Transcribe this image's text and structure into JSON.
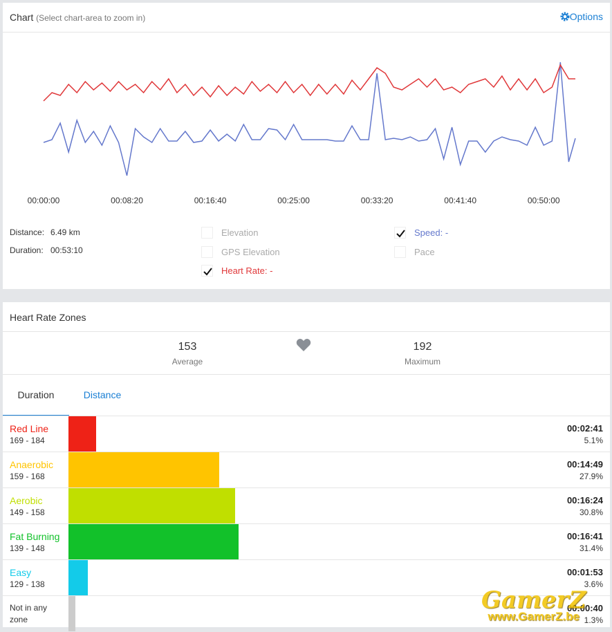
{
  "chart_data": {
    "type": "line",
    "title": "Chart",
    "subtitle": "(Select chart-area to zoom in)",
    "x": [
      0,
      50,
      100,
      150,
      200,
      250,
      300,
      350,
      400,
      450,
      500,
      550,
      600,
      650,
      700,
      750,
      800,
      850,
      900,
      950,
      1000,
      1050,
      1100,
      1150,
      1200,
      1250,
      1300,
      1350,
      1400,
      1450,
      1500,
      1550,
      1600,
      1650,
      1700,
      1750,
      1800,
      1850,
      1900,
      1950,
      2000,
      2050,
      2100,
      2150,
      2200,
      2250,
      2300,
      2350,
      2400,
      2450,
      2500,
      2550,
      2600,
      2650,
      2700,
      2750,
      2800,
      2850,
      2900,
      2950,
      3000,
      3050,
      3100,
      3150,
      3190
    ],
    "xlim": [
      0,
      3190
    ],
    "xticks": [
      {
        "value": 0,
        "label": "00:00:00"
      },
      {
        "value": 500,
        "label": "00:08:20"
      },
      {
        "value": 1000,
        "label": "00:16:40"
      },
      {
        "value": 1500,
        "label": "00:25:00"
      },
      {
        "value": 2000,
        "label": "00:33:20"
      },
      {
        "value": 2500,
        "label": "00:41:40"
      },
      {
        "value": 3000,
        "label": "00:50:00"
      }
    ],
    "ylim": [
      0,
      100
    ],
    "series": [
      {
        "name": "Heart Rate: -",
        "color": "#e0383a",
        "values": [
          62,
          68,
          66,
          74,
          68,
          76,
          70,
          75,
          69,
          76,
          70,
          74,
          68,
          76,
          70,
          78,
          68,
          74,
          66,
          72,
          65,
          73,
          66,
          72,
          67,
          76,
          69,
          74,
          68,
          76,
          68,
          74,
          66,
          74,
          67,
          74,
          67,
          77,
          70,
          78,
          86,
          82,
          72,
          70,
          74,
          78,
          72,
          78,
          70,
          72,
          68,
          74,
          76,
          78,
          72,
          80,
          70,
          78,
          70,
          78,
          68,
          72,
          88,
          78,
          78
        ]
      },
      {
        "name": "Speed: -",
        "color": "#6478cc",
        "values": [
          32,
          34,
          46,
          25,
          48,
          32,
          40,
          30,
          44,
          32,
          8,
          42,
          36,
          32,
          42,
          33,
          33,
          40,
          32,
          33,
          41,
          33,
          38,
          33,
          45,
          34,
          34,
          42,
          41,
          34,
          45,
          34,
          34,
          34,
          34,
          33,
          33,
          44,
          34,
          34,
          82,
          34,
          35,
          34,
          36,
          33,
          34,
          42,
          20,
          43,
          16,
          33,
          33,
          25,
          33,
          36,
          34,
          33,
          30,
          43,
          30,
          33,
          90,
          18,
          35
        ]
      }
    ],
    "toggles": [
      {
        "label": "Elevation",
        "checked": false
      },
      {
        "label": "GPS Elevation",
        "checked": false
      },
      {
        "label": "Pace",
        "checked": false
      }
    ],
    "options": "Options",
    "stats": [
      {
        "label": "Distance:",
        "value": "6.49 km"
      },
      {
        "label": "Duration:",
        "value": "00:53:10"
      }
    ]
  },
  "zones": {
    "title": "Heart Rate Zones",
    "average": {
      "value": "153",
      "label": "Average"
    },
    "maximum": {
      "value": "192",
      "label": "Maximum"
    },
    "tabs": [
      "Duration",
      "Distance"
    ],
    "items": [
      {
        "name": "Red Line",
        "range": "169 - 184",
        "time": "00:02:41",
        "percent": 5.1,
        "percent_label": "5.1%",
        "color": "#ee2217"
      },
      {
        "name": "Anaerobic",
        "range": "159 - 168",
        "time": "00:14:49",
        "percent": 27.9,
        "percent_label": "27.9%",
        "color": "#ffc400"
      },
      {
        "name": "Aerobic",
        "range": "149 - 158",
        "time": "00:16:24",
        "percent": 30.8,
        "percent_label": "30.8%",
        "color": "#c0df00"
      },
      {
        "name": "Fat Burning",
        "range": "139 - 148",
        "time": "00:16:41",
        "percent": 31.4,
        "percent_label": "31.4%",
        "color": "#12c12a"
      },
      {
        "name": "Easy",
        "range": "129 - 138",
        "time": "00:01:53",
        "percent": 3.6,
        "percent_label": "3.6%",
        "color": "#13cbe9"
      },
      {
        "name": "Not in any zone",
        "time": "00:00:40",
        "percent": 1.3,
        "percent_label": "1.3%",
        "color": "#cccccc"
      }
    ]
  },
  "watermark": {
    "title": "GamerZ",
    "url": "www.GamerZ.be"
  }
}
